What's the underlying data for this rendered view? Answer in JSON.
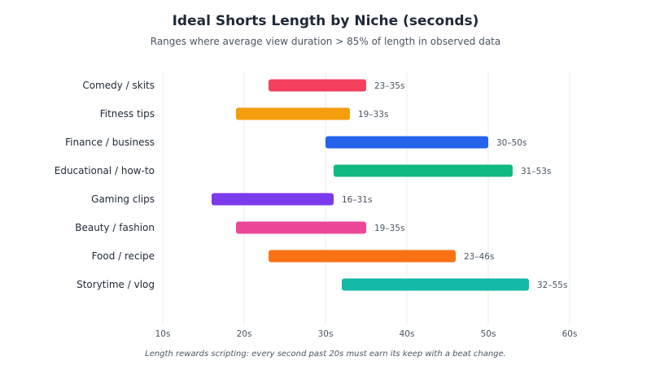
{
  "chart_data": {
    "type": "bar",
    "orientation": "horizontal-range",
    "title": "Ideal Shorts Length by Niche (seconds)",
    "subtitle": "Ranges where average view duration > 85% of length in observed data",
    "footnote": "Length rewards scripting: every second past 20s must earn its keep with a beat change.",
    "xlabel": "",
    "ylabel": "",
    "xlim": [
      10,
      60
    ],
    "x_ticks": [
      10,
      20,
      30,
      40,
      50,
      60
    ],
    "x_tick_labels": [
      "10s",
      "20s",
      "30s",
      "40s",
      "50s",
      "60s"
    ],
    "grid": true,
    "categories": [
      "Comedy / skits",
      "Fitness tips",
      "Finance / business",
      "Educational / how-to",
      "Gaming clips",
      "Beauty / fashion",
      "Food / recipe",
      "Storytime / vlog"
    ],
    "ranges": [
      {
        "start": 23,
        "end": 35,
        "label": "23–35s",
        "color": "#f43f5e"
      },
      {
        "start": 19,
        "end": 33,
        "label": "19–33s",
        "color": "#f59e0b"
      },
      {
        "start": 30,
        "end": 50,
        "label": "30–50s",
        "color": "#2563eb"
      },
      {
        "start": 31,
        "end": 53,
        "label": "31–53s",
        "color": "#10b981"
      },
      {
        "start": 16,
        "end": 31,
        "label": "16–31s",
        "color": "#7c3aed"
      },
      {
        "start": 19,
        "end": 35,
        "label": "19–35s",
        "color": "#ec4899"
      },
      {
        "start": 23,
        "end": 46,
        "label": "23–46s",
        "color": "#f97316"
      },
      {
        "start": 32,
        "end": 55,
        "label": "32–55s",
        "color": "#14b8a6"
      }
    ]
  }
}
